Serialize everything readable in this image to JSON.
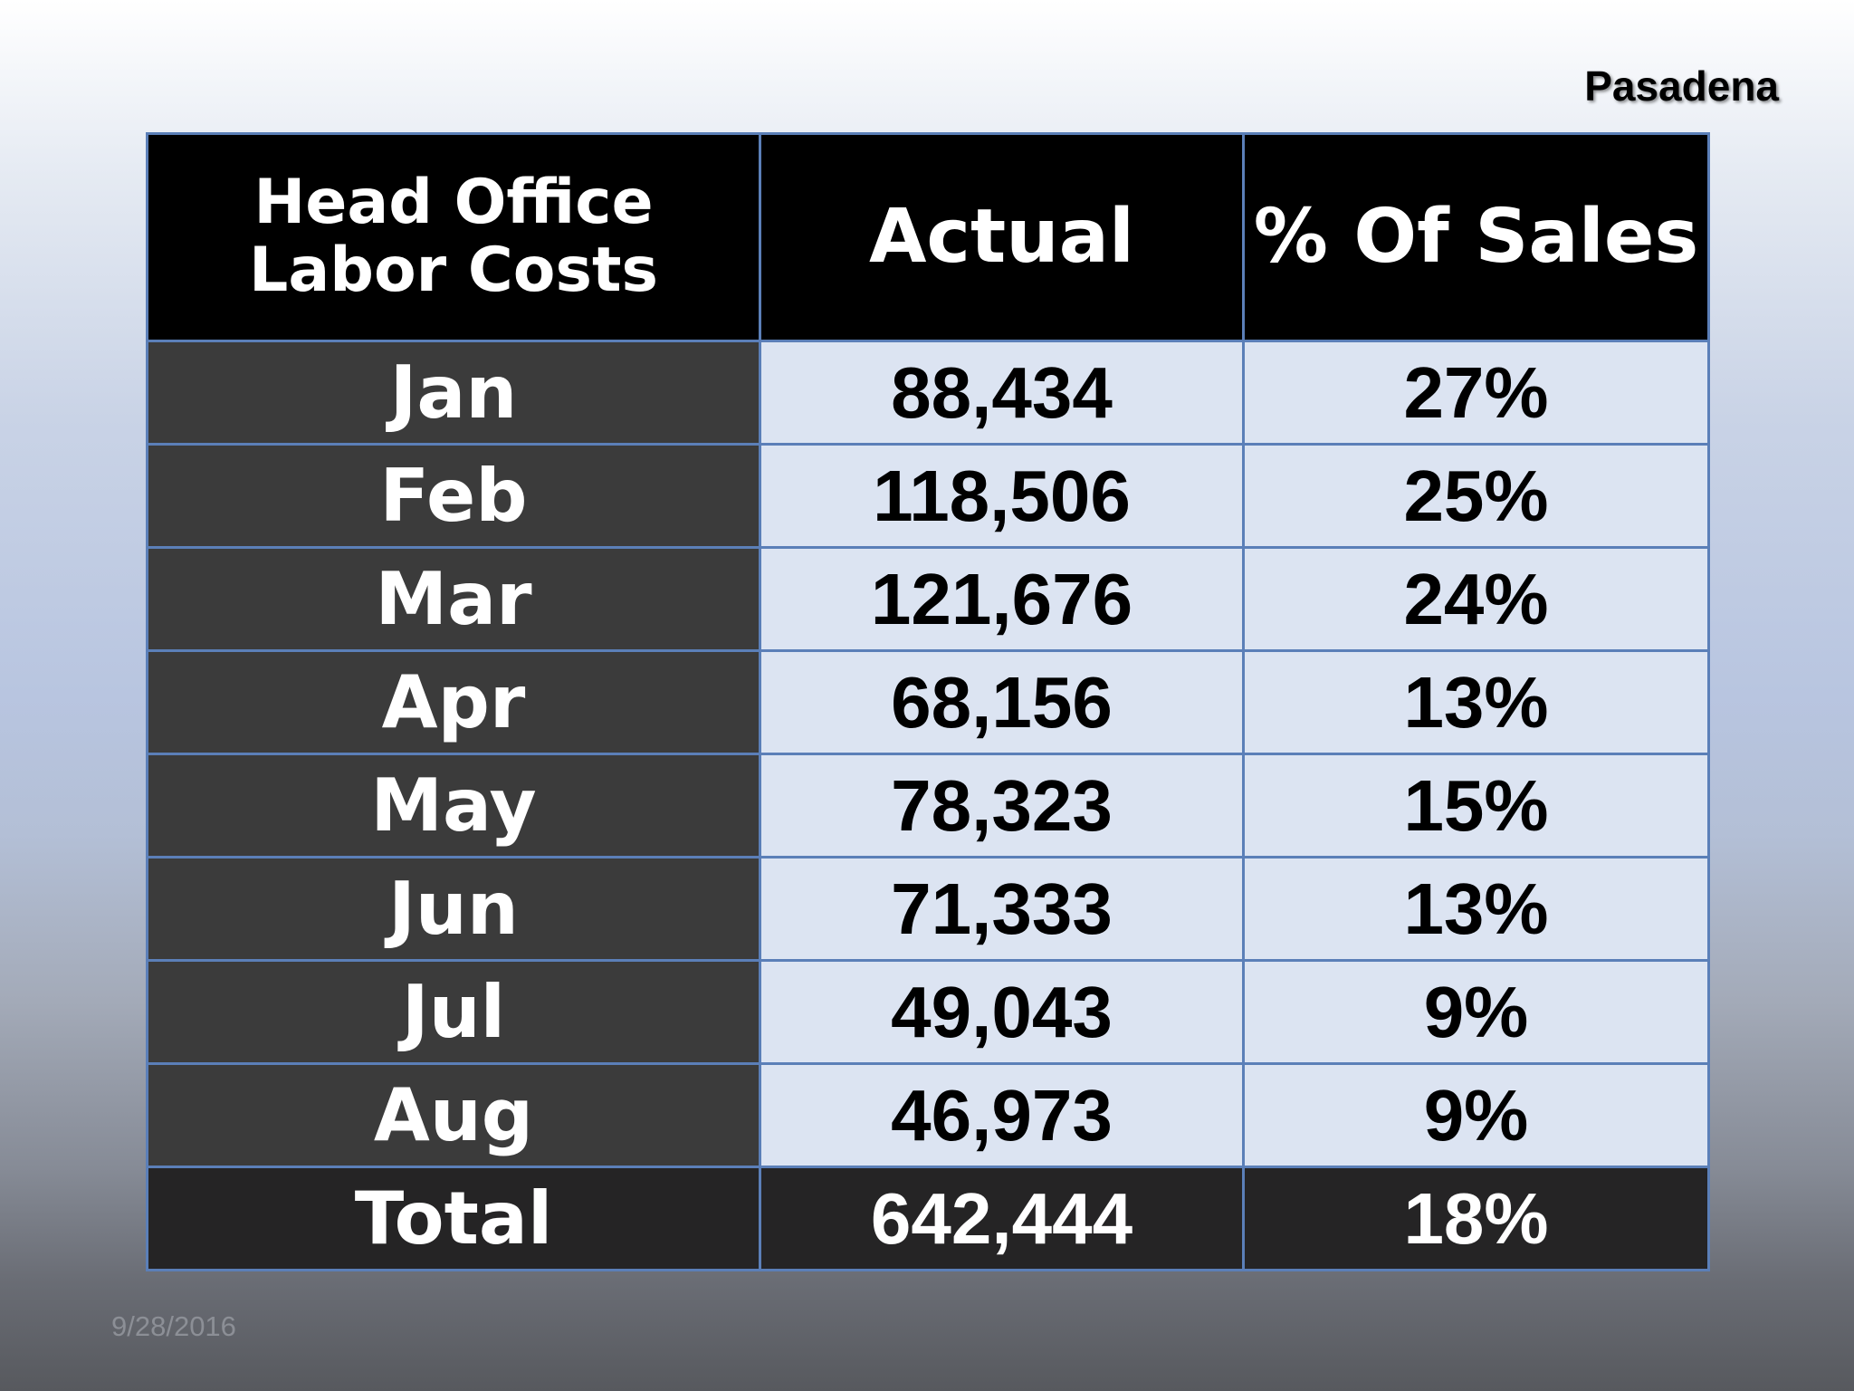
{
  "slide": {
    "location": "Pasadena",
    "date": "9/28/2016"
  },
  "table": {
    "headers": {
      "label": "Head Office Labor Costs",
      "actual": "Actual",
      "pct": "% Of Sales"
    },
    "rows": [
      {
        "month": "Jan",
        "actual": "88,434",
        "pct": "27%"
      },
      {
        "month": "Feb",
        "actual": "118,506",
        "pct": "25%"
      },
      {
        "month": "Mar",
        "actual": "121,676",
        "pct": "24%"
      },
      {
        "month": "Apr",
        "actual": "68,156",
        "pct": "13%"
      },
      {
        "month": "May",
        "actual": "78,323",
        "pct": "15%"
      },
      {
        "month": "Jun",
        "actual": "71,333",
        "pct": "13%"
      },
      {
        "month": "Jul",
        "actual": "49,043",
        "pct": "9%"
      },
      {
        "month": "Aug",
        "actual": "46,973",
        "pct": "9%"
      }
    ],
    "total": {
      "month": "Total",
      "actual": "642,444",
      "pct": "18%"
    }
  },
  "colors": {
    "header_bg": "#000000",
    "month_bg": "#3b3b3b",
    "value_bg": "#dce4f2",
    "total_bg": "#252425",
    "border": "#5b7fb8"
  }
}
